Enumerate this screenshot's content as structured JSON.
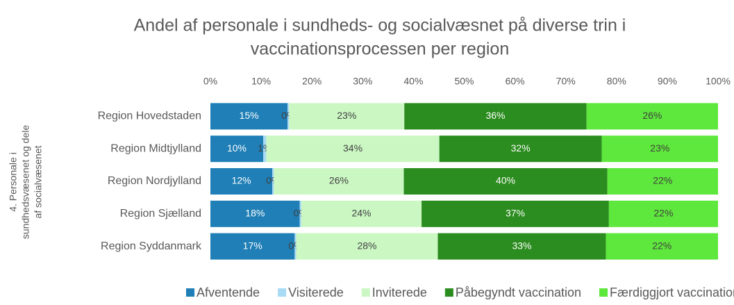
{
  "chart_data": {
    "type": "stacked-barh",
    "title": [
      "Andel af personale i sundheds- og socialvæsnet på diverse trin i",
      "vaccinationsprocessen per region"
    ],
    "ylabel": [
      "4. Personale i",
      "sundhedsvæsenet og dele",
      "af socialvæsenet"
    ],
    "categories": [
      "Region Hovedstaden",
      "Region Midtjylland",
      "Region Nordjylland",
      "Region Sjælland",
      "Region Syddanmark"
    ],
    "series": [
      {
        "name": "Afventende",
        "color": "#1f7fb6",
        "label_color": "#ffffff",
        "values": [
          15.2,
          10.4,
          12.2,
          17.6,
          16.6
        ],
        "value_labels": [
          "15%",
          "10%",
          "12%",
          "18%",
          "17%"
        ]
      },
      {
        "name": "Visiterede",
        "color": "#a9dbf5",
        "label_color": "#404040",
        "values": [
          0.3,
          0.6,
          0.3,
          0.3,
          0.3
        ],
        "value_labels": [
          "0%",
          "1%",
          "0%",
          "0%",
          "0%"
        ]
      },
      {
        "name": "Inviterede",
        "color": "#cbf7c3",
        "label_color": "#404040",
        "values": [
          22.7,
          34.1,
          25.6,
          23.7,
          27.9
        ],
        "value_labels": [
          "23%",
          "34%",
          "26%",
          "24%",
          "28%"
        ]
      },
      {
        "name": "Påbegyndt vaccination",
        "color": "#2b8c1f",
        "label_color": "#ffffff",
        "values": [
          35.9,
          32.0,
          40.1,
          36.9,
          33.1
        ],
        "value_labels": [
          "36%",
          "32%",
          "40%",
          "37%",
          "33%"
        ]
      },
      {
        "name": "Færdiggjort vaccination",
        "color": "#5ee73c",
        "label_color": "#404040",
        "values": [
          25.9,
          22.9,
          21.8,
          21.5,
          22.1
        ],
        "value_labels": [
          "26%",
          "23%",
          "22%",
          "22%",
          "22%"
        ]
      }
    ],
    "xlim": [
      0,
      100
    ],
    "xticks": [
      {
        "value": 0,
        "label": "0%"
      },
      {
        "value": 10,
        "label": "10%"
      },
      {
        "value": 20,
        "label": "20%"
      },
      {
        "value": 30,
        "label": "30%"
      },
      {
        "value": 40,
        "label": "40%"
      },
      {
        "value": 50,
        "label": "50%"
      },
      {
        "value": 60,
        "label": "60%"
      },
      {
        "value": 70,
        "label": "70%"
      },
      {
        "value": 80,
        "label": "80%"
      },
      {
        "value": 90,
        "label": "90%"
      },
      {
        "value": 100,
        "label": "100%"
      }
    ],
    "legend": "bottom"
  }
}
